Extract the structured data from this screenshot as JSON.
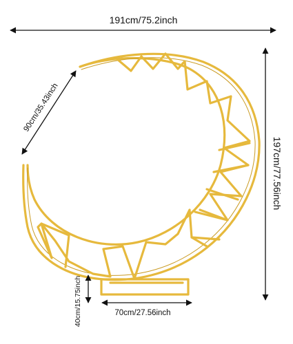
{
  "dimensions": {
    "width_label": "191cm/75.2inch",
    "height_label": "197cm/77.56inch",
    "inner_label": "90cm/35.43inch",
    "base_width_label": "70cm/27.56inch",
    "base_height_label": "40cm/15.75inch"
  },
  "colors": {
    "frame": "#e6b93d",
    "frame_edge": "#c99a22",
    "dimension_line": "#111111"
  }
}
